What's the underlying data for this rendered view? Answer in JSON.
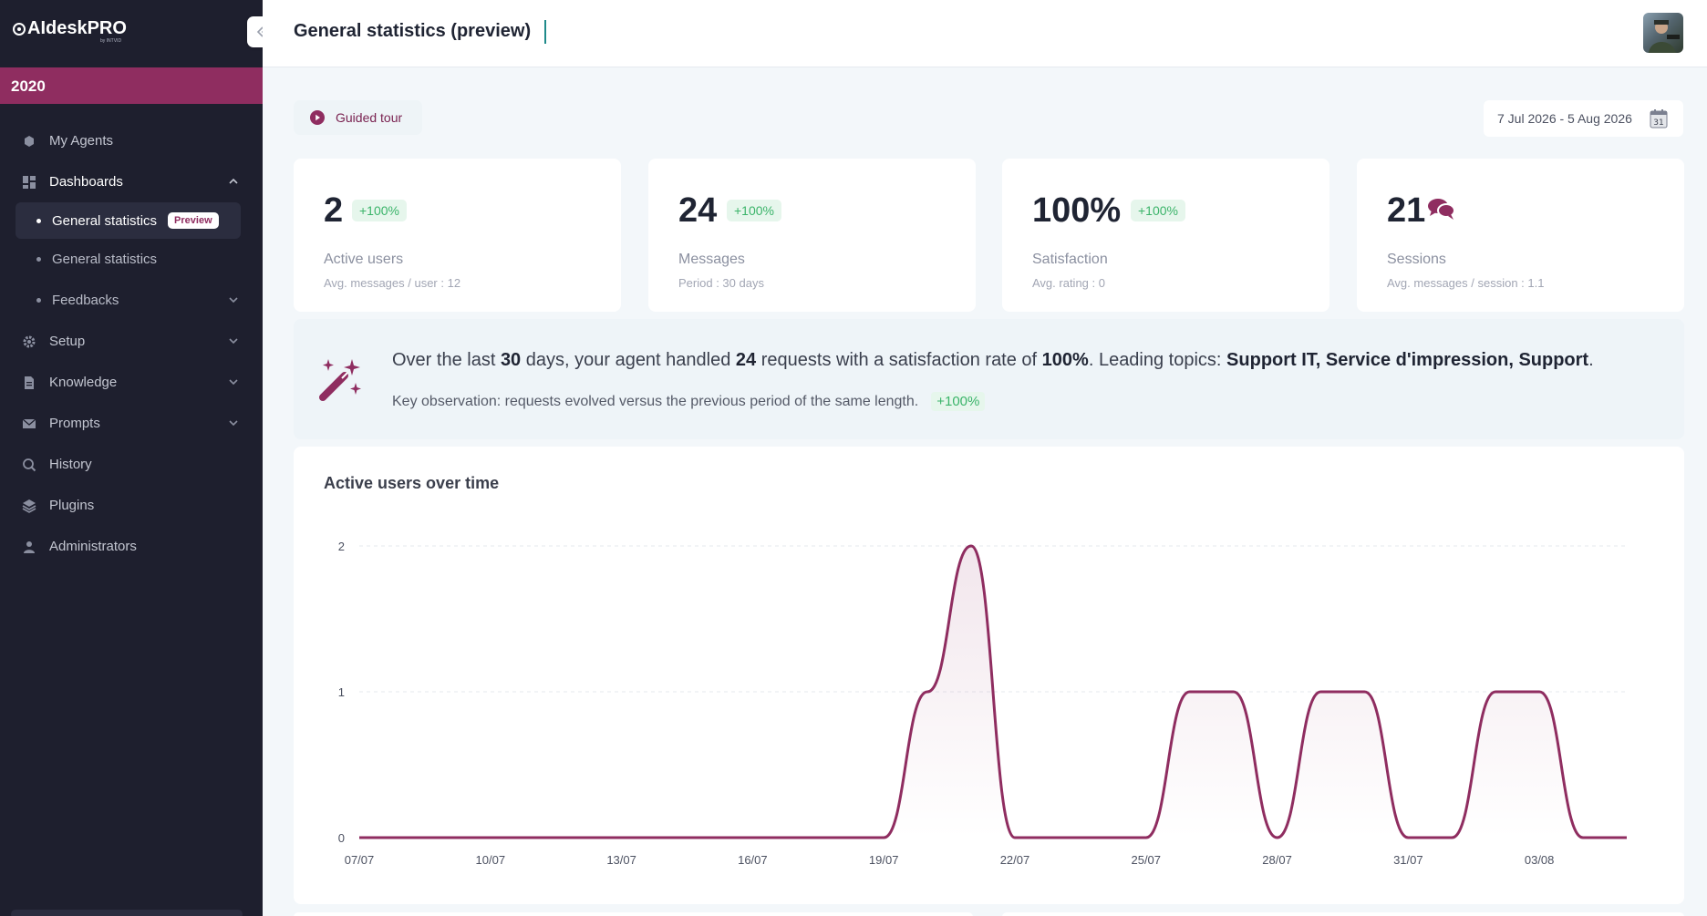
{
  "app": {
    "logo_text": "AIdeskPRO",
    "logo_sub": "by INTVID"
  },
  "sidebar": {
    "org": "2020",
    "items": [
      {
        "label": "My Agents",
        "icon": "robot-icon"
      },
      {
        "label": "Dashboards",
        "icon": "dashboard-icon"
      },
      {
        "label": "Setup",
        "icon": "gear-icon"
      },
      {
        "label": "Knowledge",
        "icon": "document-icon"
      },
      {
        "label": "Prompts",
        "icon": "envelope-icon"
      },
      {
        "label": "History",
        "icon": "search-history-icon"
      },
      {
        "label": "Plugins",
        "icon": "layers-icon"
      },
      {
        "label": "Administrators",
        "icon": "user-icon"
      }
    ],
    "sub_items": [
      {
        "label": "General statistics",
        "badge": "Preview"
      },
      {
        "label": "General statistics"
      },
      {
        "label": "Feedbacks"
      }
    ]
  },
  "header": {
    "title": "General statistics (preview)"
  },
  "toolbar": {
    "guided_tour": "Guided tour",
    "date_range": "7 Jul 2026 - 5 Aug 2026",
    "calendar_day": "31"
  },
  "cards": [
    {
      "value": "2",
      "badge": "+100%",
      "label": "Active users",
      "sub": "Avg. messages / user : 12"
    },
    {
      "value": "24",
      "badge": "+100%",
      "label": "Messages",
      "sub": "Period : 30 days"
    },
    {
      "value": "100%",
      "badge": "+100%",
      "label": "Satisfaction",
      "sub": "Avg. rating : 0"
    },
    {
      "value": "21",
      "label": "Sessions",
      "sub": "Avg. messages / session : 1.1"
    }
  ],
  "insight": {
    "p1": "Over the last ",
    "days": "30",
    "p2": " days, your agent handled ",
    "requests": "24",
    "p3": " requests with a satisfaction rate of ",
    "rate": "100%",
    "p4": ". Leading topics: ",
    "topics": "Support IT, Service d'impression, Support",
    "p5": ".",
    "observation": "Key observation: requests evolved versus the previous period of the same length.",
    "observation_badge": "+100%"
  },
  "colors": {
    "brand": "#8f2d60",
    "sidebar_bg": "#1e1f2e",
    "positive": "#3bb46a"
  },
  "chart_data": {
    "type": "area",
    "title": "Active users over time",
    "xlabel": "",
    "ylabel": "",
    "ylim": [
      0,
      2
    ],
    "yticks": [
      "0",
      "1",
      "2"
    ],
    "xticks": [
      "07/07",
      "10/07",
      "13/07",
      "16/07",
      "19/07",
      "22/07",
      "25/07",
      "28/07",
      "31/07",
      "03/08"
    ],
    "x": [
      "07/07",
      "08/07",
      "09/07",
      "10/07",
      "11/07",
      "12/07",
      "13/07",
      "14/07",
      "15/07",
      "16/07",
      "17/07",
      "18/07",
      "19/07",
      "20/07",
      "21/07",
      "22/07",
      "23/07",
      "24/07",
      "25/07",
      "26/07",
      "27/07",
      "28/07",
      "29/07",
      "30/07",
      "31/07",
      "01/08",
      "02/08",
      "03/08",
      "04/08",
      "05/08"
    ],
    "values": [
      0,
      0,
      0,
      0,
      0,
      0,
      0,
      0,
      0,
      0,
      0,
      0,
      0,
      1,
      2,
      0,
      0,
      0,
      0,
      1,
      1,
      0,
      1,
      1,
      0,
      0,
      1,
      1,
      0,
      0
    ]
  }
}
